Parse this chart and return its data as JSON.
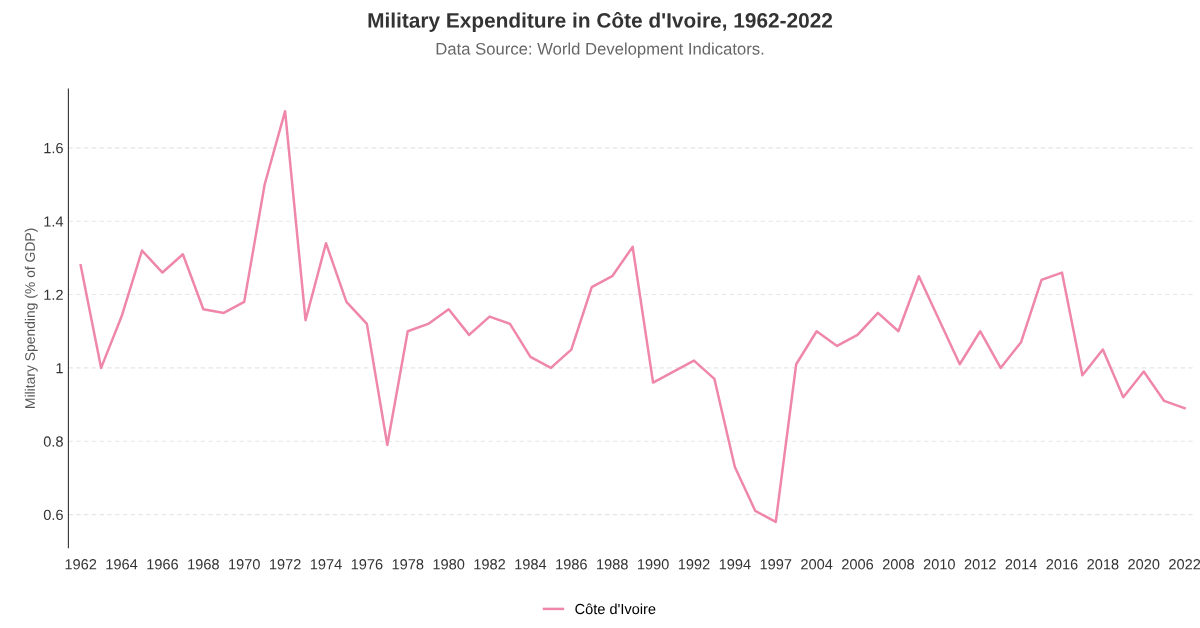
{
  "chart_data": {
    "type": "line",
    "title": "Military Expenditure in Côte d'Ivoire, 1962-2022",
    "subtitle": "Data Source: World Development Indicators.",
    "ylabel": "Military Spending (% of GDP)",
    "categories": [
      "1962",
      null,
      "1964",
      null,
      "1966",
      null,
      "1968",
      null,
      "1970",
      null,
      "1972",
      null,
      "1974",
      null,
      "1976",
      null,
      "1978",
      null,
      "1980",
      null,
      "1982",
      null,
      "1984",
      null,
      "1986",
      null,
      "1988",
      null,
      "1990",
      null,
      "1992",
      null,
      "1994",
      null,
      "1997",
      null,
      "2004",
      null,
      "2006",
      null,
      "2008",
      null,
      "2010",
      null,
      "2012",
      null,
      "2014",
      null,
      "2016",
      null,
      "2018",
      null,
      "2020",
      null,
      "2022"
    ],
    "series": [
      {
        "name": "Côte d'Ivoire",
        "color": "#ef87ab",
        "values": [
          1.28,
          1.0,
          1.14,
          1.32,
          1.26,
          1.31,
          1.16,
          1.15,
          1.18,
          1.5,
          1.7,
          1.13,
          1.34,
          1.18,
          1.12,
          0.79,
          1.1,
          1.12,
          1.16,
          1.09,
          1.14,
          1.12,
          1.03,
          1.0,
          1.05,
          1.22,
          1.25,
          1.33,
          0.96,
          0.99,
          1.02,
          0.97,
          0.73,
          0.61,
          0.58,
          1.01,
          1.1,
          1.06,
          1.09,
          1.15,
          1.1,
          1.25,
          1.13,
          1.01,
          1.1,
          1.0,
          1.07,
          1.24,
          1.26,
          0.98,
          1.05,
          0.92,
          0.99,
          0.91,
          0.89
        ]
      }
    ],
    "ylim": [
      0.51,
      1.76
    ],
    "yticks": [
      0.6,
      0.8,
      1,
      1.2,
      1.4,
      1.6
    ],
    "grid": "y",
    "legend": "bottom",
    "marker": "none",
    "line_style": "solid"
  }
}
